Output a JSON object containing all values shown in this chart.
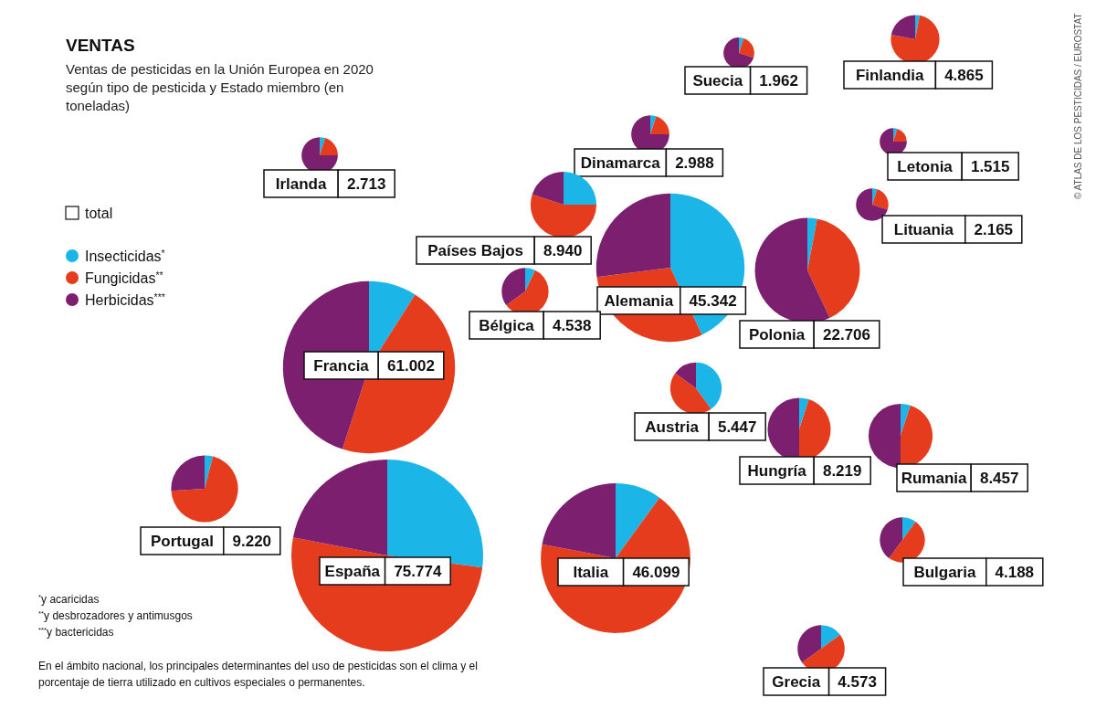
{
  "chart_data": [
    {
      "type": "other",
      "title": "VENTAS",
      "subtitle": "Ventas de pesticidas en la Unión Europea en 2020 según tipo de pesticida y Estado miembro (en toneladas)",
      "annotations": [
        "total",
        "$^{*}$y acaricidas",
        "$^{**}$y desbrozadores y antimusgos",
        "$^{***}$y bactericidas",
        "En el ámbito nacional, los principales determinantes del uso de pesticidas son el clima y el porcentaje de tierra utilizado en cultivos especiales o permanentes.",
        "© ATLAS DE LOS PESTICIDAS / EUROSTAT"
      ]
    },
    {
      "type": "pie",
      "title": "Suecia",
      "categories": [
        "Insecticidas$^{*}$",
        "Fungicidas$^{**}$",
        "Herbicidas$^{***}$"
      ],
      "values": [
        5,
        25,
        70
      ],
      "colors": [
        "#1cb5e8",
        "#e63c1e",
        "#7b1f6e"
      ],
      "annotations": [
        "1.962"
      ],
      "legend": "left"
    },
    {
      "type": "pie",
      "title": "Finlandia",
      "values": [
        3,
        75,
        22
      ],
      "colors": [
        "#1cb5e8",
        "#e63c1e",
        "#7b1f6e"
      ],
      "annotations": [
        "4.865"
      ]
    },
    {
      "type": "pie",
      "title": "Irlanda",
      "values": [
        5,
        20,
        75
      ],
      "colors": [
        "#1cb5e8",
        "#e63c1e",
        "#7b1f6e"
      ],
      "annotations": [
        "2.713"
      ]
    },
    {
      "type": "pie",
      "title": "Dinamarca",
      "values": [
        5,
        20,
        75
      ],
      "colors": [
        "#1cb5e8",
        "#e63c1e",
        "#7b1f6e"
      ],
      "annotations": [
        "2.988"
      ]
    },
    {
      "type": "pie",
      "title": "Letonia",
      "values": [
        5,
        20,
        75
      ],
      "colors": [
        "#1cb5e8",
        "#e63c1e",
        "#7b1f6e"
      ],
      "annotations": [
        "1.515"
      ]
    },
    {
      "type": "pie",
      "title": "Lituania",
      "values": [
        5,
        25,
        70
      ],
      "colors": [
        "#1cb5e8",
        "#e63c1e",
        "#7b1f6e"
      ],
      "annotations": [
        "2.165"
      ]
    },
    {
      "type": "pie",
      "title": "Países Bajos",
      "values": [
        25,
        55,
        20
      ],
      "colors": [
        "#1cb5e8",
        "#e63c1e",
        "#7b1f6e"
      ],
      "annotations": [
        "8.940"
      ]
    },
    {
      "type": "pie",
      "title": "Alemania",
      "values": [
        43,
        30,
        27
      ],
      "colors": [
        "#1cb5e8",
        "#e63c1e",
        "#7b1f6e"
      ],
      "annotations": [
        "45.342"
      ]
    },
    {
      "type": "pie",
      "title": "Polonia",
      "values": [
        3,
        40,
        57
      ],
      "colors": [
        "#1cb5e8",
        "#e63c1e",
        "#7b1f6e"
      ],
      "annotations": [
        "22.706"
      ]
    },
    {
      "type": "pie",
      "title": "Bélgica",
      "values": [
        7,
        58,
        35
      ],
      "colors": [
        "#1cb5e8",
        "#e63c1e",
        "#7b1f6e"
      ],
      "annotations": [
        "4.538"
      ]
    },
    {
      "type": "pie",
      "title": "Francia",
      "values": [
        9,
        46,
        45
      ],
      "colors": [
        "#1cb5e8",
        "#e63c1e",
        "#7b1f6e"
      ],
      "annotations": [
        "61.002"
      ]
    },
    {
      "type": "pie",
      "title": "Austria",
      "values": [
        40,
        45,
        15
      ],
      "colors": [
        "#1cb5e8",
        "#e63c1e",
        "#7b1f6e"
      ],
      "annotations": [
        "5.447"
      ]
    },
    {
      "type": "pie",
      "title": "Hungría",
      "values": [
        5,
        45,
        50
      ],
      "colors": [
        "#1cb5e8",
        "#e63c1e",
        "#7b1f6e"
      ],
      "annotations": [
        "8.219"
      ]
    },
    {
      "type": "pie",
      "title": "Rumania",
      "values": [
        5,
        45,
        50
      ],
      "colors": [
        "#1cb5e8",
        "#e63c1e",
        "#7b1f6e"
      ],
      "annotations": [
        "8.457"
      ]
    },
    {
      "type": "pie",
      "title": "Portugal",
      "values": [
        4,
        70,
        26
      ],
      "colors": [
        "#1cb5e8",
        "#e63c1e",
        "#7b1f6e"
      ],
      "annotations": [
        "9.220"
      ]
    },
    {
      "type": "pie",
      "title": "España",
      "values": [
        27,
        51,
        22
      ],
      "colors": [
        "#1cb5e8",
        "#e63c1e",
        "#7b1f6e"
      ],
      "annotations": [
        "75.774"
      ]
    },
    {
      "type": "pie",
      "title": "Italia",
      "values": [
        10,
        68,
        22
      ],
      "colors": [
        "#1cb5e8",
        "#e63c1e",
        "#7b1f6e"
      ],
      "annotations": [
        "46.099"
      ]
    },
    {
      "type": "pie",
      "title": "Bulgaria",
      "values": [
        10,
        50,
        40
      ],
      "colors": [
        "#1cb5e8",
        "#e63c1e",
        "#7b1f6e"
      ],
      "annotations": [
        "4.188"
      ]
    },
    {
      "type": "pie",
      "title": "Grecia",
      "values": [
        15,
        50,
        35
      ],
      "colors": [
        "#1cb5e8",
        "#e63c1e",
        "#7b1f6e"
      ],
      "annotations": [
        "4.573"
      ]
    }
  ]
}
